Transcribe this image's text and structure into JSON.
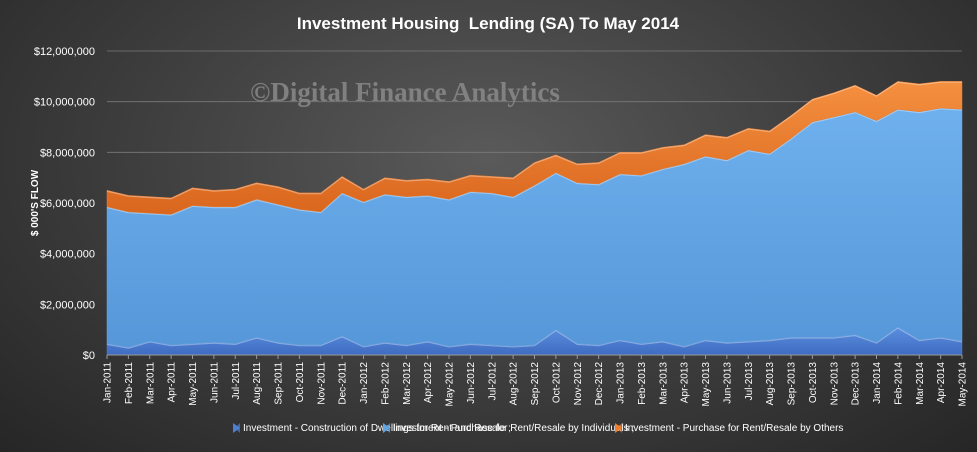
{
  "chart_data": {
    "type": "area",
    "stacked": true,
    "title": "Investment Housing  Lending (SA) To May 2014",
    "watermark": "©Digital Finance Analytics",
    "ylabel": "$ 000'S FLOW",
    "xlabel": "",
    "ylim": [
      0,
      12000000
    ],
    "yticks": [
      0,
      2000000,
      4000000,
      6000000,
      8000000,
      10000000,
      12000000
    ],
    "ytick_labels": [
      "$0",
      "$2,000,000",
      "$4,000,000",
      "$6,000,000",
      "$8,000,000",
      "$10,000,000",
      "$12,000,000"
    ],
    "grid": true,
    "legend_position": "bottom",
    "categories": [
      "Jan-2011",
      "Feb-2011",
      "Mar-2011",
      "Apr-2011",
      "May-2011",
      "Jun-2011",
      "Jul-2011",
      "Aug-2011",
      "Sep-2011",
      "Oct-2011",
      "Nov-2011",
      "Dec-2011",
      "Jan-2012",
      "Feb-2012",
      "Mar-2012",
      "Apr-2012",
      "May-2012",
      "Jun-2012",
      "Jul-2012",
      "Aug-2012",
      "Sep-2012",
      "Oct-2012",
      "Nov-2012",
      "Dec-2012",
      "Jan-2013",
      "Feb-2013",
      "Mar-2013",
      "Apr-2013",
      "May-2013",
      "Jun-2013",
      "Jul-2013",
      "Aug-2013",
      "Sep-2013",
      "Oct-2013",
      "Nov-2013",
      "Dec-2013",
      "Jan-2014",
      "Feb-2014",
      "Mar-2014",
      "Apr-2014",
      "May-2014"
    ],
    "series": [
      {
        "name": "Investment - Construction of Dwellings for Rent and Resale ;",
        "color": "#4f7fd0",
        "values": [
          450000,
          300000,
          550000,
          400000,
          450000,
          500000,
          450000,
          700000,
          500000,
          400000,
          400000,
          750000,
          350000,
          500000,
          400000,
          550000,
          350000,
          450000,
          400000,
          350000,
          400000,
          1000000,
          450000,
          400000,
          600000,
          450000,
          550000,
          350000,
          600000,
          500000,
          550000,
          600000,
          700000,
          700000,
          700000,
          800000,
          500000,
          1100000,
          600000,
          700000,
          550000
        ]
      },
      {
        "name": "Investment - Purchase for Rent/Resale by Individuals ;",
        "color": "#63a4e3",
        "values": [
          5400000,
          5350000,
          5050000,
          5150000,
          5450000,
          5350000,
          5400000,
          5450000,
          5450000,
          5350000,
          5250000,
          5650000,
          5700000,
          5850000,
          5850000,
          5750000,
          5800000,
          6000000,
          6000000,
          5900000,
          6300000,
          6200000,
          6350000,
          6350000,
          6550000,
          6650000,
          6800000,
          7200000,
          7250000,
          7200000,
          7550000,
          7350000,
          7850000,
          8500000,
          8700000,
          8800000,
          8750000,
          8600000,
          9000000,
          9050000,
          9150000
        ]
      },
      {
        "name": "Investment - Purchase for Rent/Resale by Others",
        "color": "#ee7d2c",
        "values": [
          650000,
          650000,
          650000,
          650000,
          700000,
          650000,
          700000,
          650000,
          700000,
          650000,
          750000,
          650000,
          500000,
          650000,
          650000,
          650000,
          700000,
          650000,
          650000,
          750000,
          900000,
          700000,
          750000,
          850000,
          850000,
          900000,
          850000,
          750000,
          850000,
          900000,
          850000,
          900000,
          900000,
          900000,
          950000,
          1050000,
          1000000,
          1100000,
          1100000,
          1050000,
          1100000
        ]
      }
    ]
  }
}
